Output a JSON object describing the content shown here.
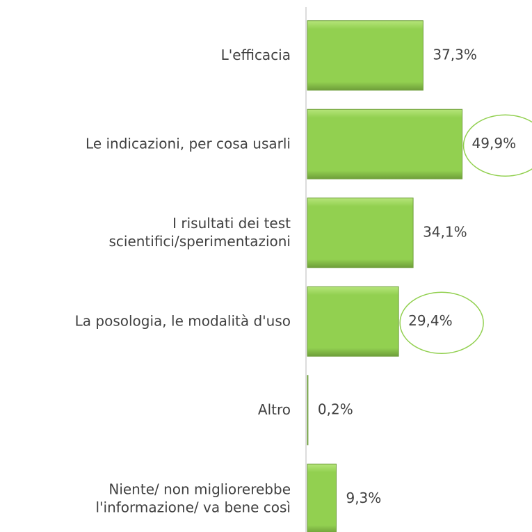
{
  "chart_data": {
    "type": "bar",
    "orientation": "horizontal",
    "categories": [
      [
        "L'efficacia"
      ],
      [
        "Le indicazioni, per cosa usarli"
      ],
      [
        "I risultati dei test",
        "scientifici/sperimentazioni"
      ],
      [
        "La posologia, le modalità d'uso"
      ],
      [
        "Altro"
      ],
      [
        "Niente/ non migliorerebbe",
        "l'informazione/ va bene così"
      ]
    ],
    "values": [
      37.3,
      49.9,
      34.1,
      29.4,
      0.2,
      9.3
    ],
    "value_labels": [
      "37,3%",
      "49,9%",
      "34,1%",
      "29,4%",
      "0,2%",
      "9,3%"
    ],
    "color": "#92d050",
    "highlighted": [
      1,
      3
    ]
  }
}
